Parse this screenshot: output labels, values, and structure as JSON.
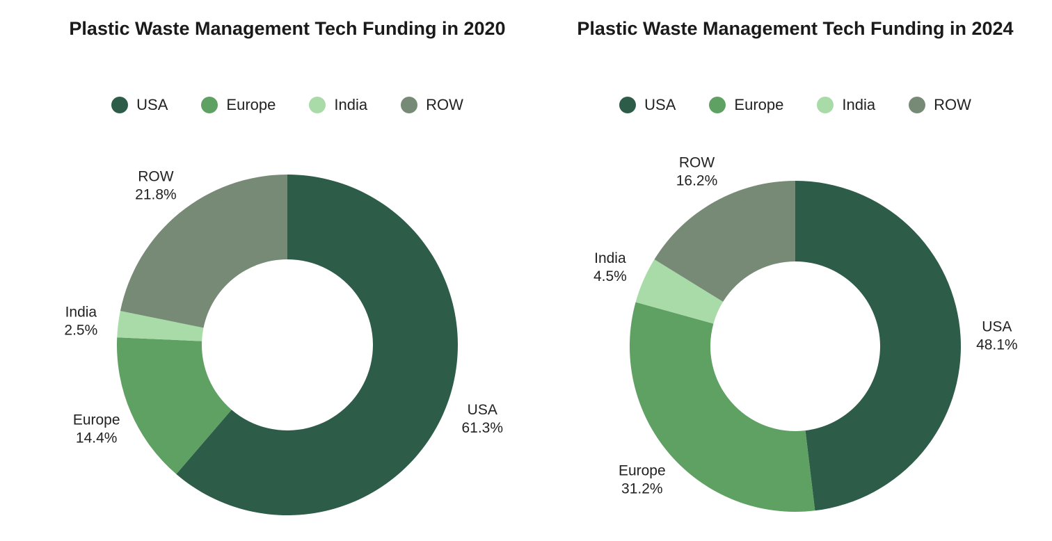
{
  "chart_data": [
    {
      "type": "pie",
      "variant": "donut",
      "title": "Plastic Waste Management Tech Funding in 2020",
      "legend_position": "top",
      "categories": [
        "USA",
        "Europe",
        "India",
        "ROW"
      ],
      "values": [
        61.3,
        14.4,
        2.5,
        21.8
      ],
      "value_labels": [
        "61.3%",
        "14.4%",
        "2.5%",
        "21.8%"
      ],
      "colors": [
        "#2d5c48",
        "#5fa063",
        "#a8dba8",
        "#768a75"
      ]
    },
    {
      "type": "pie",
      "variant": "donut",
      "title": "Plastic Waste Management Tech Funding in 2024",
      "legend_position": "top",
      "categories": [
        "USA",
        "Europe",
        "India",
        "ROW"
      ],
      "values": [
        48.1,
        31.2,
        4.5,
        16.2
      ],
      "value_labels": [
        "48.1%",
        "31.2%",
        "4.5%",
        "16.2%"
      ],
      "colors": [
        "#2d5c48",
        "#5fa063",
        "#a8dba8",
        "#768a75"
      ]
    }
  ]
}
